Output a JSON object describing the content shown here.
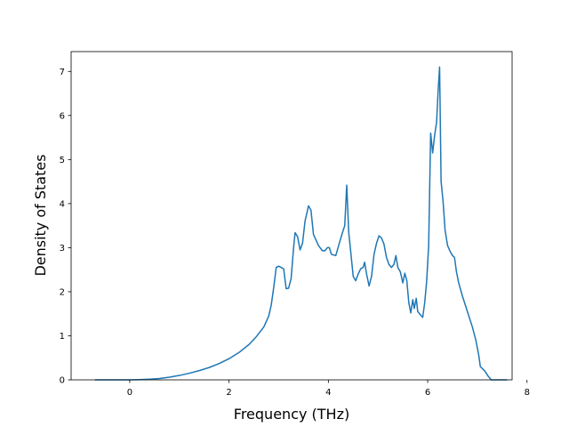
{
  "chart_data": {
    "type": "line",
    "xlabel": "Frequency (THz)",
    "ylabel": "Density of States",
    "xlim": [
      -1.18,
      7.7
    ],
    "ylim": [
      0,
      7.45
    ],
    "grid": false,
    "x_ticks": [
      0,
      2,
      4,
      6,
      8
    ],
    "y_ticks": [
      0,
      1,
      2,
      3,
      4,
      5,
      6,
      7
    ],
    "series": [
      {
        "color": "#1f77b4",
        "points": [
          [
            -0.7,
            0
          ],
          [
            0.0,
            0
          ],
          [
            0.2,
            0.005
          ],
          [
            0.4,
            0.015
          ],
          [
            0.6,
            0.03
          ],
          [
            0.8,
            0.06
          ],
          [
            1.0,
            0.1
          ],
          [
            1.2,
            0.15
          ],
          [
            1.4,
            0.21
          ],
          [
            1.6,
            0.28
          ],
          [
            1.8,
            0.37
          ],
          [
            2.0,
            0.48
          ],
          [
            2.2,
            0.62
          ],
          [
            2.4,
            0.8
          ],
          [
            2.55,
            0.98
          ],
          [
            2.7,
            1.2
          ],
          [
            2.8,
            1.45
          ],
          [
            2.85,
            1.7
          ],
          [
            2.9,
            2.1
          ],
          [
            2.95,
            2.55
          ],
          [
            3.0,
            2.58
          ],
          [
            3.05,
            2.55
          ],
          [
            3.1,
            2.52
          ],
          [
            3.15,
            2.07
          ],
          [
            3.2,
            2.08
          ],
          [
            3.25,
            2.3
          ],
          [
            3.3,
            3.0
          ],
          [
            3.33,
            3.34
          ],
          [
            3.38,
            3.25
          ],
          [
            3.43,
            2.95
          ],
          [
            3.48,
            3.1
          ],
          [
            3.53,
            3.6
          ],
          [
            3.6,
            3.95
          ],
          [
            3.65,
            3.85
          ],
          [
            3.7,
            3.3
          ],
          [
            3.8,
            3.05
          ],
          [
            3.88,
            2.93
          ],
          [
            3.93,
            2.93
          ],
          [
            3.98,
            3.0
          ],
          [
            4.02,
            3.0
          ],
          [
            4.06,
            2.85
          ],
          [
            4.15,
            2.82
          ],
          [
            4.22,
            3.1
          ],
          [
            4.3,
            3.4
          ],
          [
            4.33,
            3.5
          ],
          [
            4.37,
            4.42
          ],
          [
            4.41,
            3.35
          ],
          [
            4.46,
            2.8
          ],
          [
            4.5,
            2.35
          ],
          [
            4.55,
            2.25
          ],
          [
            4.6,
            2.4
          ],
          [
            4.65,
            2.52
          ],
          [
            4.7,
            2.55
          ],
          [
            4.73,
            2.67
          ],
          [
            4.77,
            2.4
          ],
          [
            4.82,
            2.13
          ],
          [
            4.87,
            2.35
          ],
          [
            4.92,
            2.85
          ],
          [
            4.97,
            3.1
          ],
          [
            5.02,
            3.27
          ],
          [
            5.07,
            3.22
          ],
          [
            5.12,
            3.08
          ],
          [
            5.17,
            2.78
          ],
          [
            5.22,
            2.62
          ],
          [
            5.27,
            2.55
          ],
          [
            5.32,
            2.62
          ],
          [
            5.36,
            2.82
          ],
          [
            5.4,
            2.55
          ],
          [
            5.45,
            2.45
          ],
          [
            5.5,
            2.2
          ],
          [
            5.54,
            2.42
          ],
          [
            5.58,
            2.25
          ],
          [
            5.62,
            1.75
          ],
          [
            5.66,
            1.52
          ],
          [
            5.7,
            1.82
          ],
          [
            5.73,
            1.62
          ],
          [
            5.77,
            1.85
          ],
          [
            5.8,
            1.55
          ],
          [
            5.85,
            1.48
          ],
          [
            5.9,
            1.42
          ],
          [
            5.94,
            1.75
          ],
          [
            5.98,
            2.25
          ],
          [
            6.02,
            3.05
          ],
          [
            6.06,
            5.6
          ],
          [
            6.1,
            5.15
          ],
          [
            6.14,
            5.55
          ],
          [
            6.18,
            5.85
          ],
          [
            6.21,
            6.55
          ],
          [
            6.24,
            7.1
          ],
          [
            6.27,
            4.5
          ],
          [
            6.31,
            4.05
          ],
          [
            6.35,
            3.4
          ],
          [
            6.4,
            3.05
          ],
          [
            6.45,
            2.92
          ],
          [
            6.5,
            2.82
          ],
          [
            6.54,
            2.78
          ],
          [
            6.58,
            2.45
          ],
          [
            6.62,
            2.22
          ],
          [
            6.7,
            1.9
          ],
          [
            6.8,
            1.55
          ],
          [
            6.9,
            1.2
          ],
          [
            6.97,
            0.9
          ],
          [
            7.03,
            0.55
          ],
          [
            7.06,
            0.3
          ],
          [
            7.15,
            0.2
          ],
          [
            7.22,
            0.08
          ],
          [
            7.28,
            0.0
          ],
          [
            7.4,
            0
          ],
          [
            7.6,
            0
          ]
        ]
      }
    ]
  }
}
